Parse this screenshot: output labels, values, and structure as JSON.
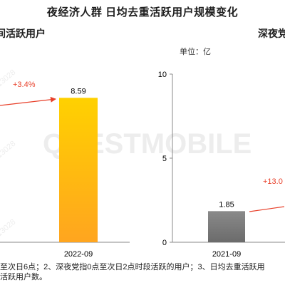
{
  "title": "夜经济人群  日均去重活跃用户规模变化",
  "left_panel_title": "间活跃用户",
  "right_panel_title": "深夜党",
  "unit_label": "单位：亿",
  "watermark": "QUESTMOBILE",
  "watermark_id": "0.13028",
  "footnote_line1": "至次日6点；2、深夜党指0点至次日2点时段活跃的用户；3、日均去重活跃用",
  "footnote_line2": "活跃用户数。",
  "colors": {
    "gold": "#FDB813",
    "gray": "#7F7F7F",
    "growth_red": "#E8402A"
  },
  "chart_data": [
    {
      "type": "bar",
      "panel": "left",
      "categories": [
        "2022-09"
      ],
      "values": [
        8.59
      ],
      "data_labels": [
        "8.59"
      ],
      "growth_label": "+3.4%"
    },
    {
      "type": "bar",
      "panel": "right",
      "categories": [
        "2021-09"
      ],
      "values": [
        1.85
      ],
      "data_labels": [
        "1.85"
      ],
      "growth_label": "+13.0",
      "y_ticks": [
        "0",
        "5",
        "10"
      ],
      "ylim": [
        0,
        10
      ]
    }
  ]
}
